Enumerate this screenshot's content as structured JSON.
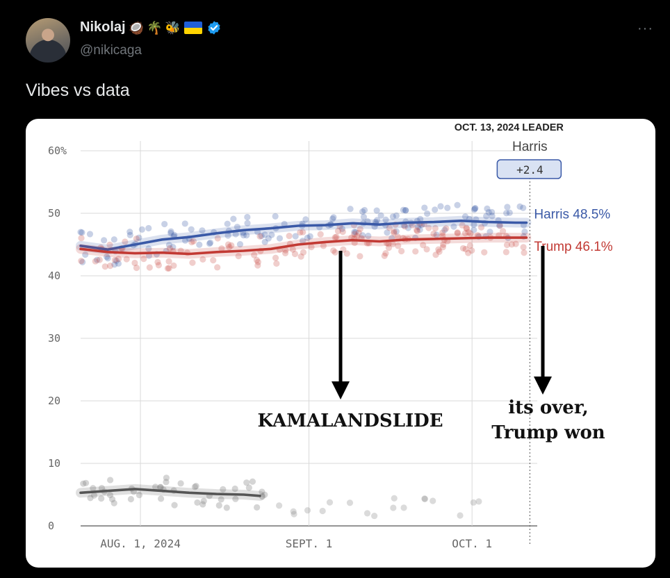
{
  "tweet": {
    "display_name": "Nikolaj",
    "emojis": [
      "🥥",
      "🌴",
      "🐝"
    ],
    "flag_icon": "ukraine-flag-icon",
    "verified_icon": "verified-badge-icon",
    "handle": "@nikicaga",
    "more_label": "···",
    "text": "Vibes vs data"
  },
  "chart_data": {
    "type": "line",
    "title": "",
    "leader_header": "OCT. 13, 2024 LEADER",
    "leader_name": "Harris",
    "leader_margin": "+2.4",
    "y_ticks": [
      {
        "v": 0,
        "label": "0"
      },
      {
        "v": 10,
        "label": "10"
      },
      {
        "v": 20,
        "label": "20"
      },
      {
        "v": 30,
        "label": "30"
      },
      {
        "v": 40,
        "label": "40"
      },
      {
        "v": 50,
        "label": "50"
      },
      {
        "v": 60,
        "label": "60%"
      }
    ],
    "ylim": [
      0,
      60
    ],
    "x_ticks": [
      {
        "day": 11,
        "label": "AUG. 1, 2024"
      },
      {
        "day": 42,
        "label": "SEPT. 1"
      },
      {
        "day": 72,
        "label": "OCT. 1"
      }
    ],
    "xlim_days": [
      0,
      84
    ],
    "x_dates": [
      "2024-07-21",
      "2024-10-13"
    ],
    "grid": true,
    "series": [
      {
        "name": "Harris",
        "end_label": "Harris 48.5%",
        "color": "#3a59a7",
        "points": [
          [
            0,
            44.8
          ],
          [
            5,
            44.2
          ],
          [
            10,
            45.0
          ],
          [
            15,
            45.8
          ],
          [
            20,
            46.2
          ],
          [
            25,
            46.8
          ],
          [
            30,
            47.3
          ],
          [
            35,
            47.6
          ],
          [
            40,
            48.0
          ],
          [
            45,
            48.1
          ],
          [
            50,
            48.4
          ],
          [
            55,
            48.2
          ],
          [
            60,
            48.5
          ],
          [
            65,
            48.6
          ],
          [
            70,
            48.8
          ],
          [
            75,
            48.6
          ],
          [
            80,
            48.5
          ],
          [
            82,
            48.5
          ]
        ]
      },
      {
        "name": "Trump",
        "end_label": "Trump 46.1%",
        "color": "#c23a34",
        "points": [
          [
            0,
            44.3
          ],
          [
            5,
            43.8
          ],
          [
            10,
            43.6
          ],
          [
            15,
            43.7
          ],
          [
            20,
            43.5
          ],
          [
            25,
            43.8
          ],
          [
            30,
            44.0
          ],
          [
            35,
            44.3
          ],
          [
            40,
            45.0
          ],
          [
            45,
            45.4
          ],
          [
            50,
            45.7
          ],
          [
            55,
            45.5
          ],
          [
            60,
            45.8
          ],
          [
            65,
            45.9
          ],
          [
            70,
            46.0
          ],
          [
            75,
            46.1
          ],
          [
            80,
            46.1
          ],
          [
            82,
            46.1
          ]
        ]
      },
      {
        "name": "Other",
        "end_label": "",
        "color": "#555555",
        "points": [
          [
            0,
            5.3
          ],
          [
            5,
            5.6
          ],
          [
            10,
            5.9
          ],
          [
            15,
            5.6
          ],
          [
            20,
            5.3
          ],
          [
            25,
            5.1
          ],
          [
            30,
            5.0
          ],
          [
            33,
            4.8
          ]
        ]
      }
    ],
    "annotations": [
      {
        "text": "KAMALANDSLIDE",
        "lines": [
          "KAMALANDSLIDE"
        ]
      },
      {
        "text": "its over, Trump won",
        "lines": [
          "its over,",
          "Trump won"
        ]
      }
    ]
  }
}
